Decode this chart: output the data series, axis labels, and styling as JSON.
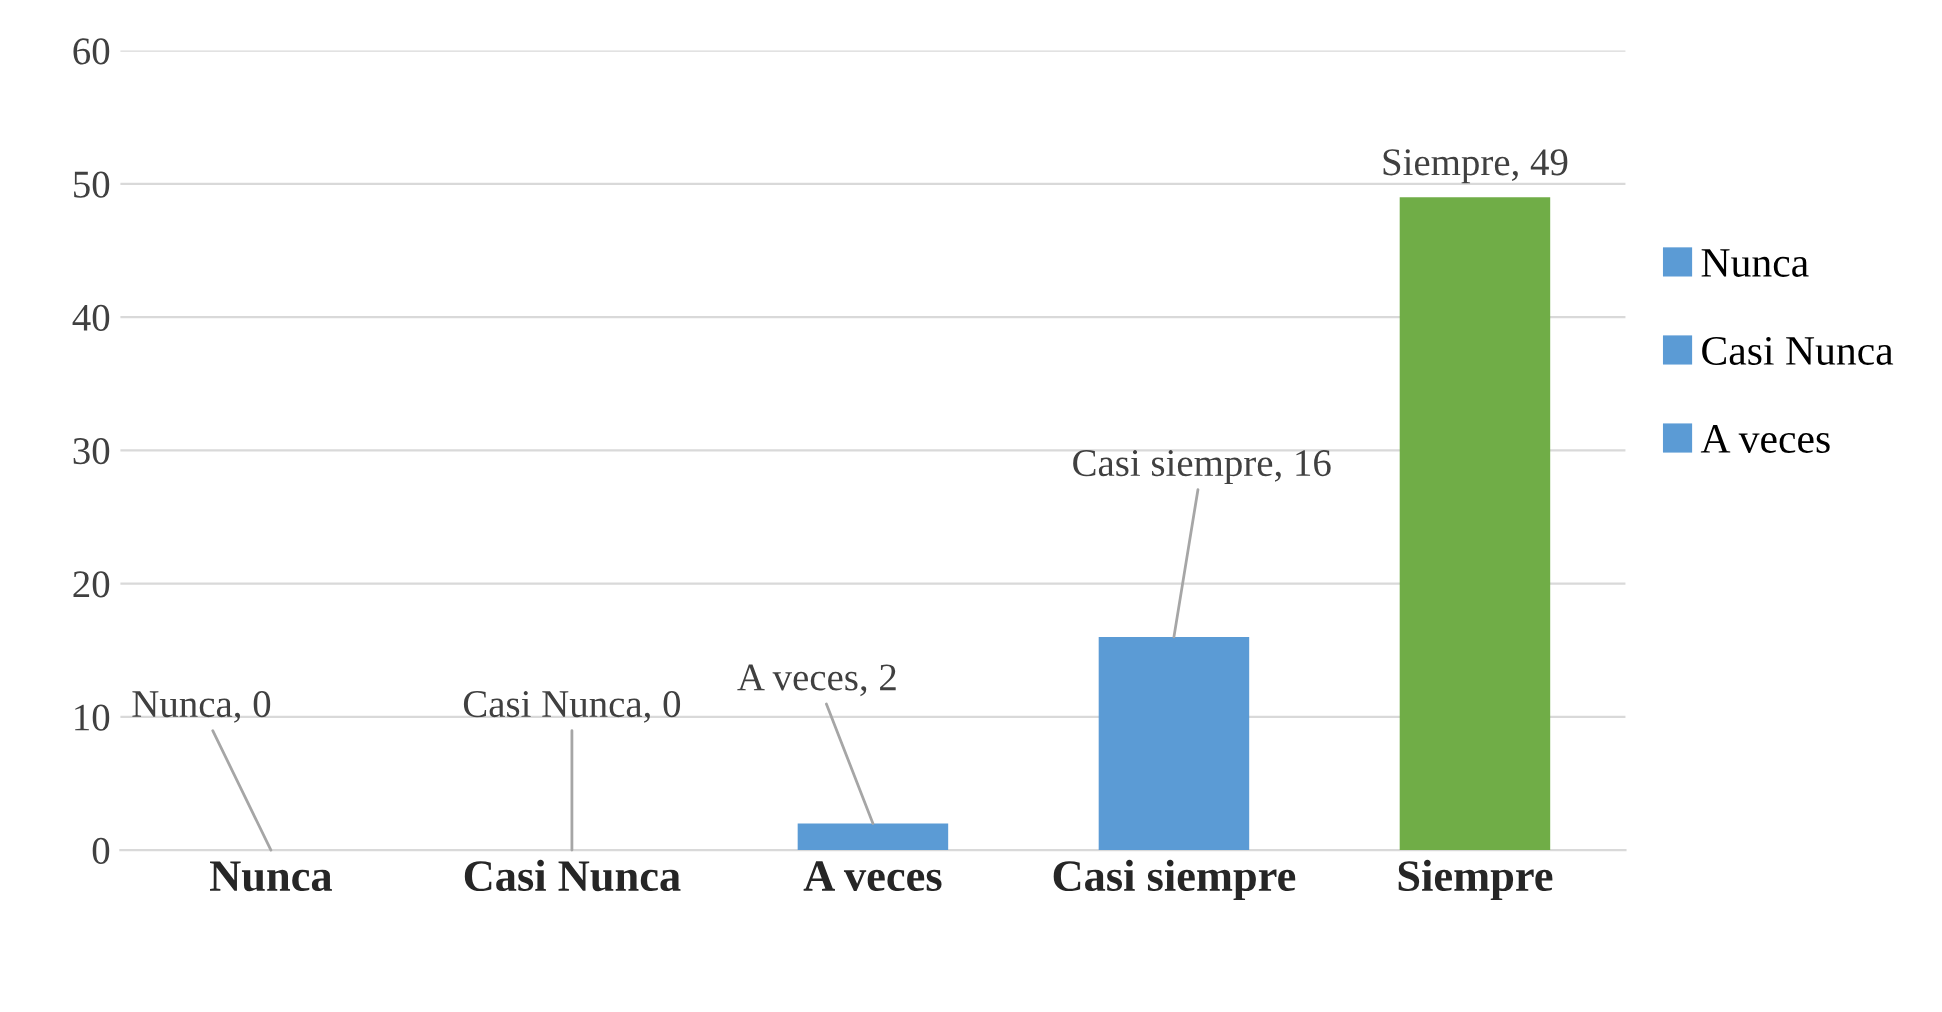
{
  "chart_data": {
    "type": "bar",
    "categories": [
      "Nunca",
      "Casi Nunca",
      "A veces",
      "Casi siempre",
      "Siempre"
    ],
    "series": [
      {
        "name": "Nunca",
        "color": "#5b9bd5",
        "values": [
          0,
          null,
          null,
          null,
          null
        ],
        "value_labels": [
          "Nunca, 0",
          null,
          null,
          null,
          null
        ]
      },
      {
        "name": "Casi Nunca",
        "color": "#5b9bd5",
        "values": [
          null,
          0,
          null,
          null,
          null
        ],
        "value_labels": [
          null,
          "Casi Nunca, 0",
          null,
          null,
          null
        ]
      },
      {
        "name": "A veces",
        "color": "#5b9bd5",
        "values": [
          null,
          null,
          2,
          null,
          null
        ],
        "value_labels": [
          null,
          null,
          "A veces, 2",
          null,
          null
        ]
      },
      {
        "color": "#5b9bd5",
        "values": [
          null,
          null,
          null,
          16,
          null
        ],
        "value_labels": [
          null,
          null,
          null,
          "Casi siempre, 16",
          null
        ]
      },
      {
        "color": "#70ad47",
        "values": [
          null,
          null,
          null,
          null,
          49
        ],
        "value_labels": [
          null,
          null,
          null,
          null,
          "Siempre, 49"
        ]
      }
    ],
    "ylim": [
      0,
      60
    ],
    "yticks": [
      0,
      10,
      20,
      30,
      40,
      50,
      60
    ],
    "grid": "y",
    "legend": "right"
  }
}
